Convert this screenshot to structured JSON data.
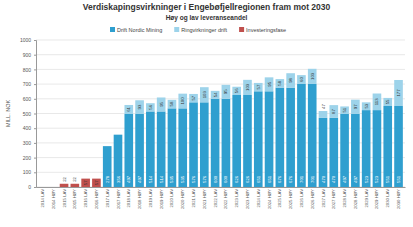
{
  "chart_data": {
    "type": "bar",
    "title": "Verdiskapingsvirkninger i Engebøfjellregionen fram mot 2030",
    "subtitle": "Høy og lav leveranseandel",
    "y_label": "MILL. NOK",
    "categories": [
      "2014 LAV",
      "2014 HØY",
      "2015 LAV",
      "2015 HØY",
      "2016 LAV",
      "2016 HØY",
      "2017 LAV",
      "2017 HØY",
      "2018 LAV",
      "2018 HØY",
      "2019 LAV",
      "2019 HØY",
      "2020 LAV",
      "2020 HØY",
      "2021 LAV",
      "2021 HØY",
      "2022 LAV",
      "2022 HØY",
      "2023 LAV",
      "2023 HØY",
      "2024 LAV",
      "2024 HØY",
      "2025 LAV",
      "2025 HØY",
      "2026 LAV",
      "2026 HØY",
      "2027 LAV",
      "2027 HØY",
      "2028 LAV",
      "2028 HØY",
      "2029 LAV",
      "2029 HØY",
      "2030 LAV",
      "2030 HØY"
    ],
    "series": [
      {
        "name": "Drift Nordic Mining",
        "color": "#2f9fcf",
        "values": [
          null,
          null,
          null,
          null,
          null,
          null,
          278,
          356,
          497,
          497,
          514,
          514,
          535,
          535,
          576,
          576,
          600,
          600,
          626,
          626,
          651,
          651,
          676,
          676,
          701,
          701,
          470,
          470,
          497,
          497,
          523,
          523,
          551,
          551
        ]
      },
      {
        "name": "Ringvirkninger drift",
        "color": "#9dd3ea",
        "values": [
          null,
          null,
          null,
          null,
          null,
          null,
          null,
          null,
          61,
          93,
          56,
          95,
          58,
          100,
          57,
          103,
          54,
          95,
          56,
          103,
          57,
          95,
          58,
          98,
          60,
          103,
          47,
          87,
          51,
          97,
          53,
          113,
          55,
          177
        ]
      },
      {
        "name": "Investeringsfase",
        "color": "#c0504d",
        "values": [
          null,
          null,
          22,
          22,
          57,
          57,
          null,
          null,
          null,
          null,
          null,
          null,
          null,
          null,
          null,
          null,
          null,
          null,
          null,
          null,
          null,
          null,
          null,
          null,
          null,
          null,
          null,
          null,
          null,
          null,
          null,
          null,
          null,
          null
        ]
      }
    ],
    "ylim": [
      0,
      1000
    ],
    "yticks": [
      0,
      100,
      200,
      300,
      400,
      500,
      600,
      700,
      800,
      900,
      1000
    ],
    "stacked": true,
    "data_labels": true,
    "grid": true,
    "legend": "top"
  }
}
